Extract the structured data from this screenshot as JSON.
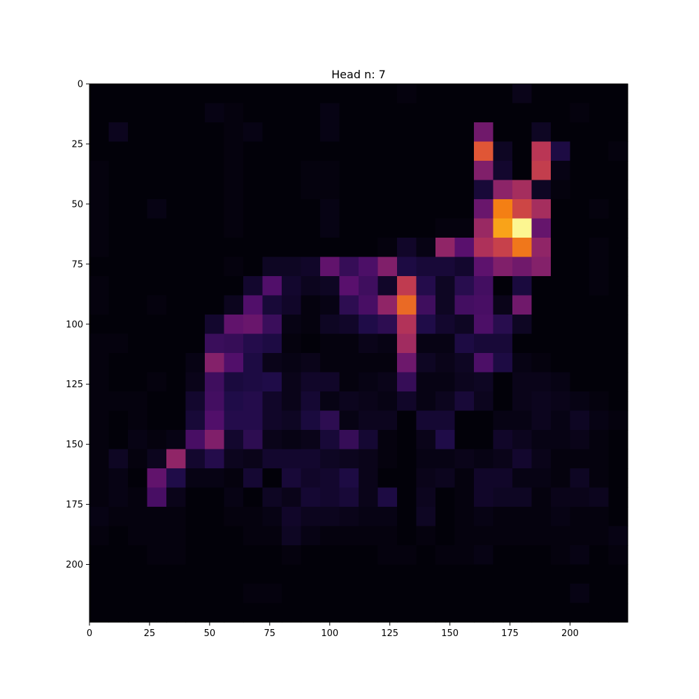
{
  "chart_data": {
    "type": "heatmap",
    "title": "Head n: 7",
    "xlabel": "",
    "ylabel": "",
    "colormap": "inferno",
    "grid": false,
    "xlim": [
      0,
      224
    ],
    "ylim": [
      224,
      0
    ],
    "cell_size": 8,
    "x_ticks": [
      0,
      25,
      50,
      75,
      100,
      125,
      150,
      175,
      200
    ],
    "y_ticks": [
      0,
      25,
      50,
      75,
      100,
      125,
      150,
      175,
      200
    ],
    "x_tick_labels": [
      "0",
      "25",
      "50",
      "75",
      "100",
      "125",
      "150",
      "175",
      "200"
    ],
    "y_tick_labels": [
      "0",
      "25",
      "50",
      "75",
      "100",
      "125",
      "150",
      "175",
      "200"
    ],
    "values": [
      [
        0.01,
        0.01,
        0.01,
        0.01,
        0.01,
        0.01,
        0.01,
        0.01,
        0.01,
        0.01,
        0.01,
        0.01,
        0.01,
        0.01,
        0.01,
        0.01,
        0.02,
        0.01,
        0.01,
        0.01,
        0.01,
        0.01,
        0.04,
        0.01,
        0.01,
        0.01,
        0.01,
        0.01
      ],
      [
        0.01,
        0.01,
        0.01,
        0.01,
        0.01,
        0.01,
        0.03,
        0.02,
        0.01,
        0.01,
        0.01,
        0.01,
        0.03,
        0.01,
        0.01,
        0.01,
        0.01,
        0.01,
        0.01,
        0.01,
        0.01,
        0.01,
        0.01,
        0.01,
        0.01,
        0.02,
        0.01,
        0.01
      ],
      [
        0.01,
        0.05,
        0.01,
        0.01,
        0.01,
        0.01,
        0.01,
        0.02,
        0.03,
        0.01,
        0.01,
        0.01,
        0.03,
        0.01,
        0.01,
        0.01,
        0.01,
        0.01,
        0.01,
        0.01,
        0.32,
        0.01,
        0.01,
        0.06,
        0.01,
        0.01,
        0.01,
        0.01
      ],
      [
        0.01,
        0.01,
        0.01,
        0.01,
        0.01,
        0.01,
        0.01,
        0.02,
        0.01,
        0.01,
        0.01,
        0.01,
        0.01,
        0.01,
        0.01,
        0.01,
        0.01,
        0.01,
        0.01,
        0.01,
        0.62,
        0.06,
        0.01,
        0.5,
        0.12,
        0.01,
        0.01,
        0.02
      ],
      [
        0.02,
        0.01,
        0.01,
        0.01,
        0.01,
        0.01,
        0.01,
        0.02,
        0.01,
        0.01,
        0.01,
        0.02,
        0.02,
        0.01,
        0.01,
        0.01,
        0.01,
        0.01,
        0.01,
        0.01,
        0.36,
        0.08,
        0.01,
        0.53,
        0.03,
        0.01,
        0.01,
        0.01
      ],
      [
        0.02,
        0.01,
        0.01,
        0.01,
        0.01,
        0.01,
        0.01,
        0.02,
        0.01,
        0.01,
        0.01,
        0.02,
        0.02,
        0.01,
        0.01,
        0.01,
        0.01,
        0.01,
        0.01,
        0.01,
        0.1,
        0.39,
        0.45,
        0.06,
        0.02,
        0.01,
        0.01,
        0.01
      ],
      [
        0.02,
        0.01,
        0.01,
        0.03,
        0.01,
        0.01,
        0.01,
        0.02,
        0.01,
        0.01,
        0.01,
        0.01,
        0.03,
        0.01,
        0.01,
        0.01,
        0.01,
        0.01,
        0.01,
        0.01,
        0.3,
        0.72,
        0.56,
        0.45,
        0.01,
        0.01,
        0.02,
        0.01
      ],
      [
        0.02,
        0.01,
        0.01,
        0.01,
        0.01,
        0.01,
        0.01,
        0.02,
        0.01,
        0.01,
        0.01,
        0.01,
        0.03,
        0.01,
        0.01,
        0.01,
        0.01,
        0.01,
        0.02,
        0.02,
        0.42,
        0.8,
        0.98,
        0.29,
        0.01,
        0.01,
        0.01,
        0.01
      ],
      [
        0.02,
        0.01,
        0.01,
        0.01,
        0.01,
        0.01,
        0.01,
        0.01,
        0.01,
        0.01,
        0.01,
        0.01,
        0.01,
        0.01,
        0.01,
        0.02,
        0.07,
        0.03,
        0.4,
        0.26,
        0.47,
        0.54,
        0.7,
        0.4,
        0.01,
        0.01,
        0.02,
        0.01
      ],
      [
        0.01,
        0.01,
        0.01,
        0.01,
        0.01,
        0.01,
        0.01,
        0.02,
        0.01,
        0.06,
        0.06,
        0.07,
        0.28,
        0.18,
        0.23,
        0.36,
        0.12,
        0.1,
        0.1,
        0.08,
        0.27,
        0.36,
        0.32,
        0.37,
        0.01,
        0.01,
        0.02,
        0.01
      ],
      [
        0.02,
        0.01,
        0.01,
        0.01,
        0.01,
        0.01,
        0.01,
        0.01,
        0.08,
        0.24,
        0.08,
        0.05,
        0.06,
        0.26,
        0.2,
        0.07,
        0.52,
        0.14,
        0.06,
        0.15,
        0.21,
        0.01,
        0.11,
        0.01,
        0.01,
        0.01,
        0.02,
        0.01
      ],
      [
        0.02,
        0.01,
        0.01,
        0.02,
        0.01,
        0.01,
        0.01,
        0.05,
        0.24,
        0.1,
        0.07,
        0.02,
        0.03,
        0.16,
        0.22,
        0.4,
        0.67,
        0.2,
        0.06,
        0.21,
        0.22,
        0.04,
        0.32,
        0.01,
        0.01,
        0.01,
        0.01,
        0.01
      ],
      [
        0.01,
        0.01,
        0.01,
        0.01,
        0.01,
        0.01,
        0.08,
        0.28,
        0.3,
        0.19,
        0.03,
        0.02,
        0.06,
        0.07,
        0.13,
        0.16,
        0.48,
        0.13,
        0.08,
        0.06,
        0.23,
        0.15,
        0.06,
        0.01,
        0.01,
        0.01,
        0.01,
        0.01
      ],
      [
        0.02,
        0.02,
        0.01,
        0.01,
        0.01,
        0.01,
        0.19,
        0.18,
        0.14,
        0.12,
        0.02,
        0.01,
        0.02,
        0.02,
        0.04,
        0.03,
        0.44,
        0.03,
        0.03,
        0.12,
        0.1,
        0.1,
        0.01,
        0.01,
        0.01,
        0.01,
        0.01,
        0.01
      ],
      [
        0.02,
        0.01,
        0.01,
        0.01,
        0.01,
        0.03,
        0.37,
        0.24,
        0.12,
        0.04,
        0.03,
        0.04,
        0.02,
        0.02,
        0.02,
        0.02,
        0.31,
        0.06,
        0.04,
        0.06,
        0.23,
        0.12,
        0.03,
        0.02,
        0.01,
        0.01,
        0.01,
        0.01
      ],
      [
        0.02,
        0.01,
        0.01,
        0.02,
        0.01,
        0.04,
        0.2,
        0.11,
        0.12,
        0.13,
        0.04,
        0.07,
        0.07,
        0.02,
        0.03,
        0.04,
        0.18,
        0.03,
        0.03,
        0.05,
        0.06,
        0.01,
        0.04,
        0.04,
        0.03,
        0.01,
        0.01,
        0.01
      ],
      [
        0.02,
        0.02,
        0.02,
        0.01,
        0.01,
        0.08,
        0.21,
        0.13,
        0.14,
        0.07,
        0.04,
        0.09,
        0.03,
        0.05,
        0.04,
        0.03,
        0.07,
        0.03,
        0.05,
        0.1,
        0.05,
        0.01,
        0.04,
        0.05,
        0.04,
        0.03,
        0.02,
        0.01
      ],
      [
        0.02,
        0.01,
        0.02,
        0.01,
        0.01,
        0.1,
        0.24,
        0.14,
        0.14,
        0.07,
        0.06,
        0.11,
        0.16,
        0.03,
        0.05,
        0.05,
        0.01,
        0.09,
        0.09,
        0.01,
        0.01,
        0.03,
        0.03,
        0.05,
        0.03,
        0.06,
        0.03,
        0.02
      ],
      [
        0.02,
        0.01,
        0.03,
        0.02,
        0.03,
        0.22,
        0.36,
        0.08,
        0.16,
        0.04,
        0.03,
        0.04,
        0.1,
        0.18,
        0.09,
        0.02,
        0.01,
        0.04,
        0.13,
        0.01,
        0.01,
        0.07,
        0.05,
        0.03,
        0.03,
        0.04,
        0.02,
        0.01
      ],
      [
        0.02,
        0.06,
        0.02,
        0.05,
        0.4,
        0.08,
        0.14,
        0.05,
        0.04,
        0.08,
        0.08,
        0.08,
        0.06,
        0.05,
        0.04,
        0.02,
        0.01,
        0.03,
        0.03,
        0.04,
        0.03,
        0.04,
        0.08,
        0.04,
        0.02,
        0.02,
        0.02,
        0.01
      ],
      [
        0.02,
        0.03,
        0.01,
        0.28,
        0.13,
        0.03,
        0.03,
        0.02,
        0.09,
        0.01,
        0.1,
        0.07,
        0.08,
        0.12,
        0.04,
        0.01,
        0.01,
        0.04,
        0.05,
        0.02,
        0.07,
        0.07,
        0.03,
        0.03,
        0.02,
        0.06,
        0.02,
        0.01
      ],
      [
        0.02,
        0.03,
        0.02,
        0.22,
        0.04,
        0.01,
        0.01,
        0.03,
        0.01,
        0.06,
        0.04,
        0.09,
        0.08,
        0.1,
        0.04,
        0.12,
        0.01,
        0.05,
        0.01,
        0.02,
        0.07,
        0.06,
        0.06,
        0.02,
        0.04,
        0.04,
        0.05,
        0.01
      ],
      [
        0.03,
        0.02,
        0.02,
        0.02,
        0.02,
        0.01,
        0.01,
        0.02,
        0.02,
        0.03,
        0.07,
        0.05,
        0.05,
        0.04,
        0.03,
        0.03,
        0.01,
        0.06,
        0.01,
        0.02,
        0.03,
        0.02,
        0.02,
        0.02,
        0.03,
        0.02,
        0.02,
        0.01
      ],
      [
        0.02,
        0.01,
        0.02,
        0.02,
        0.02,
        0.01,
        0.01,
        0.01,
        0.02,
        0.02,
        0.06,
        0.03,
        0.02,
        0.02,
        0.02,
        0.02,
        0.01,
        0.02,
        0.01,
        0.02,
        0.02,
        0.02,
        0.02,
        0.02,
        0.02,
        0.02,
        0.02,
        0.03
      ],
      [
        0.01,
        0.01,
        0.01,
        0.02,
        0.02,
        0.01,
        0.01,
        0.01,
        0.01,
        0.01,
        0.02,
        0.01,
        0.01,
        0.01,
        0.01,
        0.02,
        0.02,
        0.01,
        0.02,
        0.02,
        0.03,
        0.01,
        0.01,
        0.01,
        0.02,
        0.03,
        0.01,
        0.02
      ],
      [
        0.01,
        0.01,
        0.01,
        0.01,
        0.01,
        0.01,
        0.01,
        0.01,
        0.01,
        0.01,
        0.01,
        0.01,
        0.01,
        0.01,
        0.01,
        0.01,
        0.01,
        0.01,
        0.01,
        0.01,
        0.01,
        0.01,
        0.01,
        0.01,
        0.01,
        0.01,
        0.01,
        0.01
      ],
      [
        0.01,
        0.01,
        0.01,
        0.01,
        0.01,
        0.01,
        0.01,
        0.01,
        0.02,
        0.02,
        0.01,
        0.01,
        0.01,
        0.01,
        0.01,
        0.01,
        0.01,
        0.01,
        0.01,
        0.01,
        0.01,
        0.01,
        0.01,
        0.01,
        0.01,
        0.03,
        0.01,
        0.01
      ],
      [
        0.01,
        0.01,
        0.01,
        0.01,
        0.01,
        0.01,
        0.01,
        0.01,
        0.01,
        0.01,
        0.01,
        0.01,
        0.01,
        0.01,
        0.01,
        0.01,
        0.01,
        0.01,
        0.01,
        0.01,
        0.01,
        0.01,
        0.01,
        0.01,
        0.01,
        0.01,
        0.01,
        0.01
      ]
    ]
  }
}
